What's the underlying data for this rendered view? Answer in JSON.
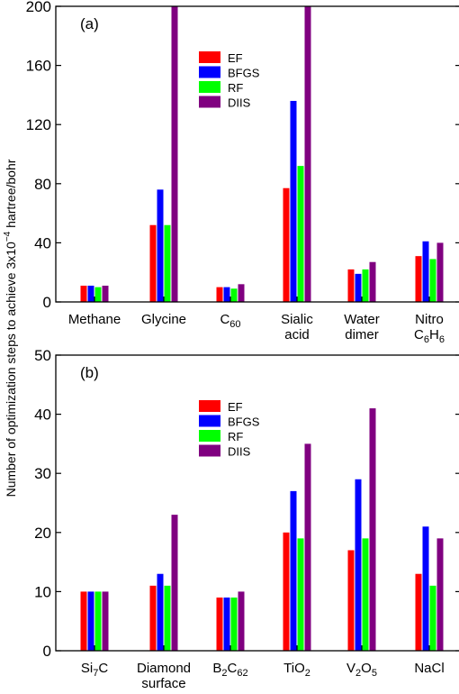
{
  "ylabel": "Number of optimization steps to achieve 3x10⁻⁴ hartree/bohr",
  "chart_data": [
    {
      "type": "bar",
      "panel_label": "(a)",
      "categories": [
        {
          "lines": [
            [
              {
                "t": "Methane"
              }
            ]
          ]
        },
        {
          "lines": [
            [
              {
                "t": "Glycine"
              }
            ]
          ]
        },
        {
          "lines": [
            [
              {
                "t": "C"
              },
              {
                "t": "60",
                "sub": true
              }
            ]
          ]
        },
        {
          "lines": [
            [
              {
                "t": "Sialic"
              }
            ],
            [
              {
                "t": "acid"
              }
            ]
          ]
        },
        {
          "lines": [
            [
              {
                "t": "Water"
              }
            ],
            [
              {
                "t": "dimer"
              }
            ]
          ]
        },
        {
          "lines": [
            [
              {
                "t": "Nitro"
              }
            ],
            [
              {
                "t": "C"
              },
              {
                "t": "6",
                "sub": true
              },
              {
                "t": "H"
              },
              {
                "t": "6",
                "sub": true
              }
            ]
          ]
        }
      ],
      "series": [
        {
          "name": "EF",
          "color": "#ff0000",
          "values": [
            11,
            52,
            10,
            77,
            22,
            31
          ]
        },
        {
          "name": "BFGS",
          "color": "#0000ff",
          "values": [
            11,
            76,
            10,
            136,
            19,
            41
          ]
        },
        {
          "name": "RF",
          "color": "#00ff00",
          "values": [
            10,
            52,
            9,
            92,
            22,
            29
          ]
        },
        {
          "name": "DIIS",
          "color": "#800080",
          "values": [
            11,
            200,
            12,
            200,
            27,
            40
          ]
        }
      ],
      "ylim": [
        0,
        200
      ],
      "yticks": [
        0,
        40,
        80,
        120,
        160,
        200
      ],
      "legend_position": "top-center",
      "grid": false
    },
    {
      "type": "bar",
      "panel_label": "(b)",
      "categories": [
        {
          "lines": [
            [
              {
                "t": "Si"
              },
              {
                "t": "7",
                "sub": true
              },
              {
                "t": "C"
              }
            ]
          ]
        },
        {
          "lines": [
            [
              {
                "t": "Diamond"
              }
            ],
            [
              {
                "t": "surface"
              }
            ]
          ]
        },
        {
          "lines": [
            [
              {
                "t": "B"
              },
              {
                "t": "2",
                "sub": true
              },
              {
                "t": "C"
              },
              {
                "t": "62",
                "sub": true
              }
            ]
          ]
        },
        {
          "lines": [
            [
              {
                "t": "TiO"
              },
              {
                "t": "2",
                "sub": true
              }
            ]
          ]
        },
        {
          "lines": [
            [
              {
                "t": "V"
              },
              {
                "t": "2",
                "sub": true
              },
              {
                "t": "O"
              },
              {
                "t": "5",
                "sub": true
              }
            ]
          ]
        },
        {
          "lines": [
            [
              {
                "t": "NaCl"
              }
            ]
          ]
        }
      ],
      "series": [
        {
          "name": "EF",
          "color": "#ff0000",
          "values": [
            10,
            11,
            9,
            20,
            17,
            13
          ]
        },
        {
          "name": "BFGS",
          "color": "#0000ff",
          "values": [
            10,
            13,
            9,
            27,
            29,
            21
          ]
        },
        {
          "name": "RF",
          "color": "#00ff00",
          "values": [
            10,
            11,
            9,
            19,
            19,
            11
          ]
        },
        {
          "name": "DIIS",
          "color": "#800080",
          "values": [
            10,
            23,
            10,
            35,
            41,
            19
          ]
        }
      ],
      "ylim": [
        0,
        50
      ],
      "yticks": [
        0,
        10,
        20,
        30,
        40,
        50
      ],
      "legend_position": "top-center",
      "grid": false
    }
  ]
}
